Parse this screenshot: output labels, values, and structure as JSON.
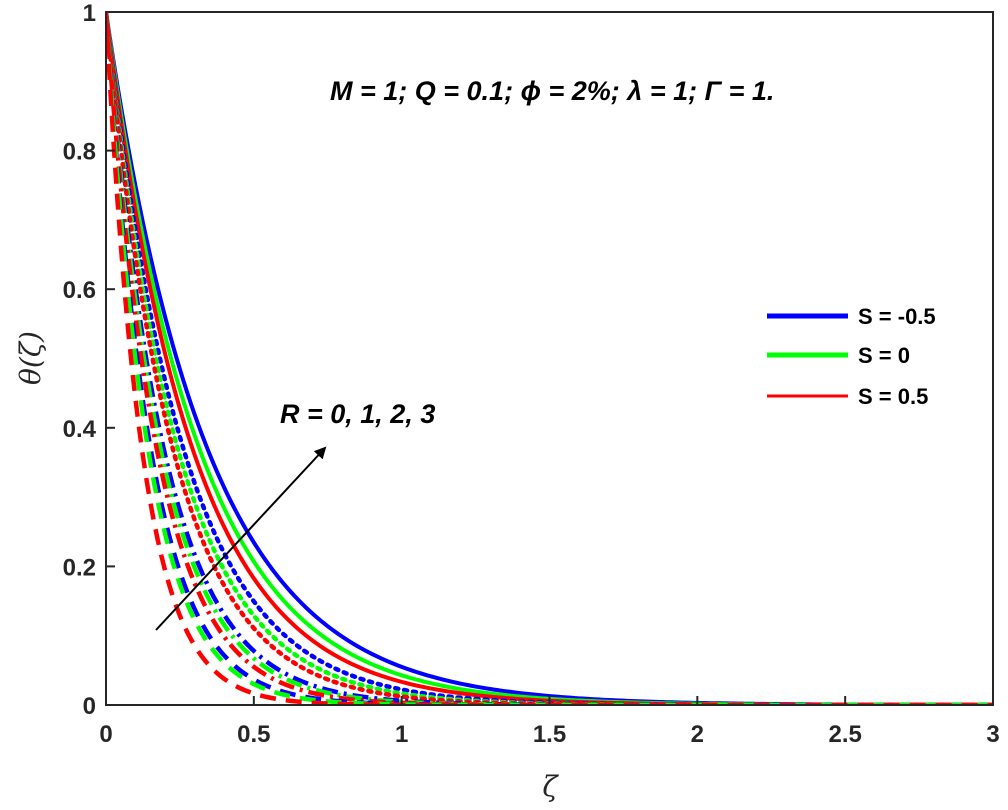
{
  "chart_data": {
    "type": "line",
    "title": "",
    "xlabel": "ζ",
    "ylabel": "θ(ζ)",
    "xlim": [
      0,
      3
    ],
    "ylim": [
      0,
      1
    ],
    "xticks": [
      "0",
      "0.5",
      "1",
      "1.5",
      "2",
      "2.5",
      "3"
    ],
    "yticks": [
      "0",
      "0.2",
      "0.4",
      "0.6",
      "0.8",
      "1"
    ],
    "grid": false,
    "legend_position": "right",
    "legend": [
      {
        "label": "S = -0.5",
        "color": "#0000ff"
      },
      {
        "label": "S = 0",
        "color": "#00ff00"
      },
      {
        "label": "S = 0.5",
        "color": "#ff0000"
      }
    ],
    "parameter_text": "M = 1; Q = 0.1; ϕ = 2%; λ = 1; Γ = 1.",
    "arrow_text": "R = 0, 1, 2, 3",
    "x": [
      0,
      0.1,
      0.2,
      0.3,
      0.4,
      0.5,
      0.6,
      0.7,
      0.8,
      0.9,
      1.0,
      1.2,
      1.4,
      1.6,
      1.8,
      2.0,
      2.5,
      3.0
    ],
    "series": [
      {
        "name": "S = -0.5, R = 3",
        "color": "#0000ff",
        "style": "solid",
        "decay": 2.9
      },
      {
        "name": "S = 0, R = 3",
        "color": "#00ff00",
        "style": "solid",
        "decay": 3.15
      },
      {
        "name": "S = 0.5, R = 3",
        "color": "#ff0000",
        "style": "solid",
        "decay": 3.4
      },
      {
        "name": "S = -0.5, R = 2",
        "color": "#0000ff",
        "style": "dotted",
        "decay": 3.8
      },
      {
        "name": "S = 0, R = 2",
        "color": "#00ff00",
        "style": "dotted",
        "decay": 4.1
      },
      {
        "name": "S = 0.5, R = 2",
        "color": "#ff0000",
        "style": "dotted",
        "decay": 4.4
      },
      {
        "name": "S = -0.5, R = 1",
        "color": "#0000ff",
        "style": "dashdot",
        "decay": 5.1
      },
      {
        "name": "S = 0, R = 1",
        "color": "#00ff00",
        "style": "dashdot",
        "decay": 5.4
      },
      {
        "name": "S = 0.5, R = 1",
        "color": "#ff0000",
        "style": "dashdot",
        "decay": 5.8
      },
      {
        "name": "S = -0.5, R = 0",
        "color": "#0000ff",
        "style": "dashed",
        "decay": 6.6
      },
      {
        "name": "S = 0, R = 0",
        "color": "#00ff00",
        "style": "dashed",
        "decay": 7.0
      },
      {
        "name": "S = 0.5, R = 0",
        "color": "#ff0000",
        "style": "dashed",
        "decay": 8.2
      }
    ]
  }
}
